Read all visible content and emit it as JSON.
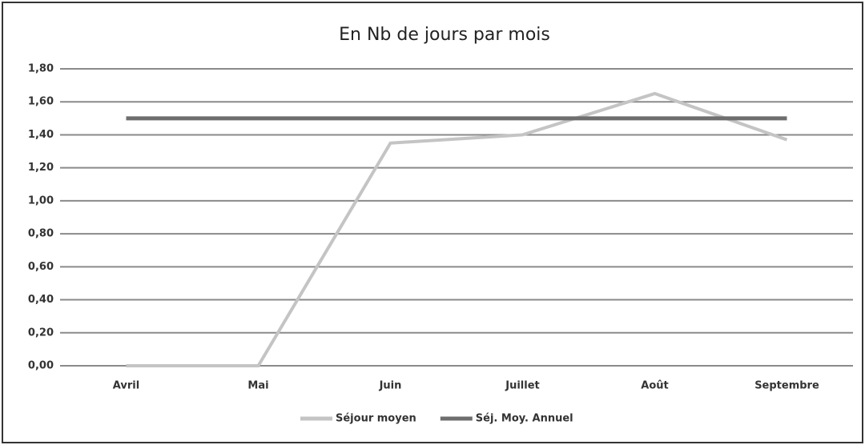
{
  "chart_data": {
    "type": "line",
    "title": "En Nb de jours par mois",
    "categories": [
      "Avril",
      "Mai",
      "Juin",
      "Juillet",
      "Août",
      "Septembre"
    ],
    "series": [
      {
        "name": "Séjour moyen",
        "color": "#c4c4c4",
        "values": [
          0,
          0,
          1.35,
          1.4,
          1.65,
          1.37
        ]
      },
      {
        "name": "Séj. Moy. Annuel",
        "color": "#6e6e6e",
        "values": [
          1.5,
          1.5,
          1.5,
          1.5,
          1.5,
          1.5
        ]
      }
    ],
    "ylim": [
      0,
      1.8
    ],
    "yticks": [
      {
        "value": 0,
        "label": "0,00"
      },
      {
        "value": 0.2,
        "label": "0,20"
      },
      {
        "value": 0.4,
        "label": "0,40"
      },
      {
        "value": 0.6,
        "label": "0,60"
      },
      {
        "value": 0.8,
        "label": "0,80"
      },
      {
        "value": 1.0,
        "label": "1,00"
      },
      {
        "value": 1.2,
        "label": "1,20"
      },
      {
        "value": 1.4,
        "label": "1,40"
      },
      {
        "value": 1.6,
        "label": "1,60"
      },
      {
        "value": 1.8,
        "label": "1,80"
      }
    ],
    "grid": true,
    "legend": "bottom"
  }
}
